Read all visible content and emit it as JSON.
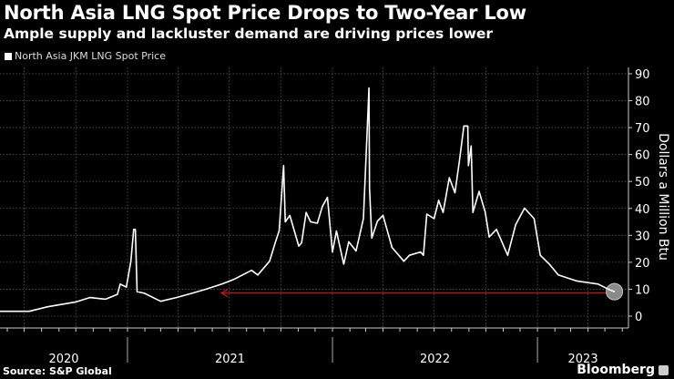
{
  "header": {
    "title": "North Asia LNG Spot Price Drops to Two-Year Low",
    "subtitle": "Ample supply and lackluster demand are driving prices lower"
  },
  "footer": {
    "source": "Source: S&P Global",
    "brand": "Bloomberg"
  },
  "colors": {
    "background": "#000000",
    "line": "#ffffff",
    "arrow": "#c0141e",
    "marker": "#9a9a9a",
    "grid": "#555555"
  },
  "chart_data": {
    "type": "line",
    "title": "North Asia LNG Spot Price Drops to Two-Year Low",
    "subtitle": "Ample supply and lackluster demand are driving prices lower",
    "ylabel": "Dollars a Million Btu",
    "xlabel": "",
    "legend": {
      "position": "top-left",
      "entries": [
        "North Asia JKM LNG Spot Price"
      ]
    },
    "ylim": [
      -5,
      92
    ],
    "yticks": [
      "0",
      "10",
      "20",
      "30",
      "40",
      "50",
      "60",
      "70",
      "80",
      "90"
    ],
    "xlim": [
      "2020-05-19",
      "2023-06-12"
    ],
    "year_labels": [
      "2020",
      "2021",
      "2022",
      "2023"
    ],
    "grid": true,
    "annotations": [
      "red arrow pointing left at latest price level (~$9)",
      "circle marker on latest value"
    ],
    "series": [
      {
        "name": "North Asia JKM LNG Spot Price",
        "points": [
          [
            "2020-05-19",
            1.8
          ],
          [
            "2020-07-10",
            1.8
          ],
          [
            "2020-08-12",
            3.5
          ],
          [
            "2020-09-30",
            5.2
          ],
          [
            "2020-10-26",
            6.9
          ],
          [
            "2020-11-23",
            6.3
          ],
          [
            "2020-12-14",
            8.1
          ],
          [
            "2020-12-19",
            11.9
          ],
          [
            "2020-12-30",
            10.8
          ],
          [
            "2021-01-07",
            20.4
          ],
          [
            "2021-01-12",
            32.2
          ],
          [
            "2021-01-15",
            32.2
          ],
          [
            "2021-01-18",
            9.1
          ],
          [
            "2021-01-31",
            8.5
          ],
          [
            "2021-03-01",
            5.5
          ],
          [
            "2021-03-29",
            6.9
          ],
          [
            "2021-04-26",
            8.5
          ],
          [
            "2021-05-21",
            10.0
          ],
          [
            "2021-06-18",
            11.9
          ],
          [
            "2021-07-09",
            13.6
          ],
          [
            "2021-08-10",
            17.0
          ],
          [
            "2021-08-21",
            15.3
          ],
          [
            "2021-09-11",
            20.4
          ],
          [
            "2021-09-21",
            27.2
          ],
          [
            "2021-09-28",
            31.7
          ],
          [
            "2021-10-06",
            55.9
          ],
          [
            "2021-10-09",
            35.0
          ],
          [
            "2021-10-17",
            37.4
          ],
          [
            "2021-11-02",
            26.0
          ],
          [
            "2021-11-07",
            27.2
          ],
          [
            "2021-11-15",
            38.5
          ],
          [
            "2021-11-23",
            35.0
          ],
          [
            "2021-12-05",
            34.5
          ],
          [
            "2021-12-14",
            40.7
          ],
          [
            "2021-12-23",
            44.1
          ],
          [
            "2022-01-01",
            23.8
          ],
          [
            "2022-01-08",
            31.6
          ],
          [
            "2022-01-21",
            19.3
          ],
          [
            "2022-01-30",
            27.6
          ],
          [
            "2022-02-12",
            24.2
          ],
          [
            "2022-02-25",
            36.2
          ],
          [
            "2022-03-02",
            59.9
          ],
          [
            "2022-03-07",
            84.7
          ],
          [
            "2022-03-08",
            47.5
          ],
          [
            "2022-03-12",
            29.0
          ],
          [
            "2022-03-22",
            35.3
          ],
          [
            "2022-04-01",
            37.4
          ],
          [
            "2022-04-17",
            25.5
          ],
          [
            "2022-05-08",
            20.4
          ],
          [
            "2022-05-18",
            22.6
          ],
          [
            "2022-06-07",
            23.8
          ],
          [
            "2022-06-12",
            22.6
          ],
          [
            "2022-06-18",
            37.9
          ],
          [
            "2022-07-01",
            36.2
          ],
          [
            "2022-07-09",
            43.0
          ],
          [
            "2022-07-17",
            38.5
          ],
          [
            "2022-07-28",
            51.4
          ],
          [
            "2022-08-07",
            45.8
          ],
          [
            "2022-08-15",
            57.6
          ],
          [
            "2022-08-23",
            70.6
          ],
          [
            "2022-08-30",
            70.6
          ],
          [
            "2022-08-31",
            55.9
          ],
          [
            "2022-09-05",
            63.2
          ],
          [
            "2022-09-08",
            38.5
          ],
          [
            "2022-09-19",
            46.3
          ],
          [
            "2022-09-30",
            38.5
          ],
          [
            "2022-10-07",
            29.4
          ],
          [
            "2022-10-20",
            32.2
          ],
          [
            "2022-11-09",
            22.6
          ],
          [
            "2022-11-23",
            33.9
          ],
          [
            "2022-12-09",
            40.1
          ],
          [
            "2022-12-26",
            36.2
          ],
          [
            "2023-01-06",
            22.6
          ],
          [
            "2023-01-22",
            19.3
          ],
          [
            "2023-02-07",
            15.3
          ],
          [
            "2023-03-11",
            13.1
          ],
          [
            "2023-04-19",
            11.9
          ],
          [
            "2023-05-10",
            9.7
          ],
          [
            "2023-05-18",
            9.1
          ]
        ]
      }
    ]
  }
}
